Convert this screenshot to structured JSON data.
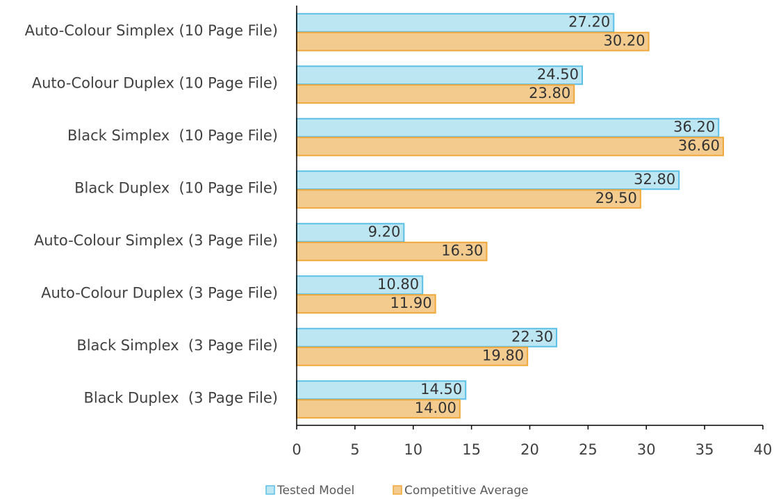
{
  "chart_data": {
    "type": "bar",
    "orientation": "horizontal",
    "categories": [
      "Auto-Colour Simplex (10 Page File)",
      "Auto-Colour Duplex (10 Page File)",
      "Black Simplex  (10 Page File)",
      "Black Duplex  (10 Page File)",
      "Auto-Colour Simplex (3 Page File)",
      "Auto-Colour Duplex (3 Page File)",
      "Black Simplex  (3 Page File)",
      "Black Duplex  (3 Page File)"
    ],
    "series": [
      {
        "name": "Tested Model",
        "color": "#bde6f3",
        "edge_color": "#5bbfe6",
        "values": [
          27.2,
          24.5,
          36.2,
          32.8,
          9.2,
          10.8,
          22.3,
          14.5
        ],
        "value_labels": [
          "27.20",
          "24.50",
          "36.20",
          "32.80",
          "9.20",
          "10.80",
          "22.30",
          "14.50"
        ]
      },
      {
        "name": "Competitive Average",
        "color": "#f3cb8e",
        "edge_color": "#f0a83a",
        "values": [
          30.2,
          23.8,
          36.6,
          29.5,
          16.3,
          11.9,
          19.8,
          14.0
        ],
        "value_labels": [
          "30.20",
          "23.80",
          "36.60",
          "29.50",
          "16.30",
          "11.90",
          "19.80",
          "14.00"
        ]
      }
    ],
    "xlim": [
      0,
      40
    ],
    "xticks": [
      0,
      5,
      10,
      15,
      20,
      25,
      30,
      35,
      40
    ],
    "legend": "bottom"
  }
}
